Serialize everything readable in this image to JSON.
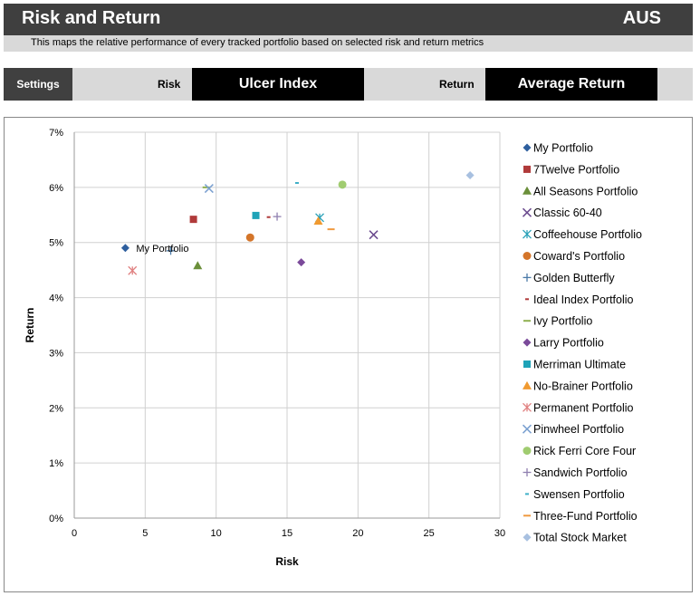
{
  "header": {
    "title": "Risk and Return",
    "region": "AUS",
    "subtitle": "This maps the relative performance of every tracked portfolio based on selected risk and return metrics"
  },
  "settings": {
    "label": "Settings",
    "risk_label": "Risk",
    "risk_value": "Ulcer Index",
    "return_label": "Return",
    "return_value": "Average Return"
  },
  "chart_data": {
    "type": "scatter",
    "xlabel": "Risk",
    "ylabel": "Return",
    "xlim": [
      0,
      30
    ],
    "ylim": [
      0,
      7
    ],
    "xticks": [
      "0",
      "5",
      "10",
      "15",
      "20",
      "25",
      "30"
    ],
    "yticks": [
      "0%",
      "1%",
      "2%",
      "3%",
      "4%",
      "5%",
      "6%",
      "7%"
    ],
    "grid": true,
    "legend_position": "right",
    "annotation": "My Portfolio",
    "series": [
      {
        "name": "My Portfolio",
        "marker": "diamond",
        "color": "#2e5f9e",
        "x": 3.6,
        "y": 4.9
      },
      {
        "name": "7Twelve Portfolio",
        "marker": "square",
        "color": "#b03a3a",
        "x": 8.4,
        "y": 5.42
      },
      {
        "name": "All Seasons Portfolio",
        "marker": "triangle",
        "color": "#6b8f3a",
        "x": 8.7,
        "y": 4.58
      },
      {
        "name": "Classic 60-40",
        "marker": "x",
        "color": "#6a4a8e",
        "x": 21.1,
        "y": 5.14
      },
      {
        "name": "Coffeehouse Portfolio",
        "marker": "asterisk",
        "color": "#2aa1b8",
        "x": 17.3,
        "y": 5.45
      },
      {
        "name": "Coward's Portfolio",
        "marker": "circle",
        "color": "#d4752a",
        "x": 12.4,
        "y": 5.09
      },
      {
        "name": "Golden Butterfly",
        "marker": "plus",
        "color": "#4a7aa8",
        "x": 6.8,
        "y": 4.85
      },
      {
        "name": "Ideal Index Portfolio",
        "marker": "dash",
        "color": "#b03a3a",
        "x": 13.7,
        "y": 5.46
      },
      {
        "name": "Ivy Portfolio",
        "marker": "line",
        "color": "#8fb050",
        "x": 9.3,
        "y": 6.0
      },
      {
        "name": "Larry Portfolio",
        "marker": "diamond",
        "color": "#7b4a9a",
        "x": 16.0,
        "y": 4.64
      },
      {
        "name": "Merriman Ultimate",
        "marker": "square",
        "color": "#1fa3b8",
        "x": 12.8,
        "y": 5.49
      },
      {
        "name": "No-Brainer Portfolio",
        "marker": "triangle",
        "color": "#f09a30",
        "x": 17.2,
        "y": 5.39
      },
      {
        "name": "Permanent Portfolio",
        "marker": "asterisk",
        "color": "#e08080",
        "x": 4.1,
        "y": 4.49
      },
      {
        "name": "Pinwheel Portfolio",
        "marker": "x",
        "color": "#7aa0d0",
        "x": 9.5,
        "y": 5.98
      },
      {
        "name": "Rick Ferri Core Four",
        "marker": "circle",
        "color": "#a0cc70",
        "x": 18.9,
        "y": 6.05
      },
      {
        "name": "Sandwich Portfolio",
        "marker": "plus",
        "color": "#9080b0",
        "x": 14.3,
        "y": 5.47
      },
      {
        "name": "Swensen Portfolio",
        "marker": "dash",
        "color": "#40b0c8",
        "x": 15.7,
        "y": 6.08
      },
      {
        "name": "Three-Fund Portfolio",
        "marker": "line",
        "color": "#f09a40",
        "x": 18.1,
        "y": 5.24
      },
      {
        "name": "Total Stock Market",
        "marker": "diamond",
        "color": "#a8c0e0",
        "x": 27.9,
        "y": 6.22
      }
    ]
  }
}
